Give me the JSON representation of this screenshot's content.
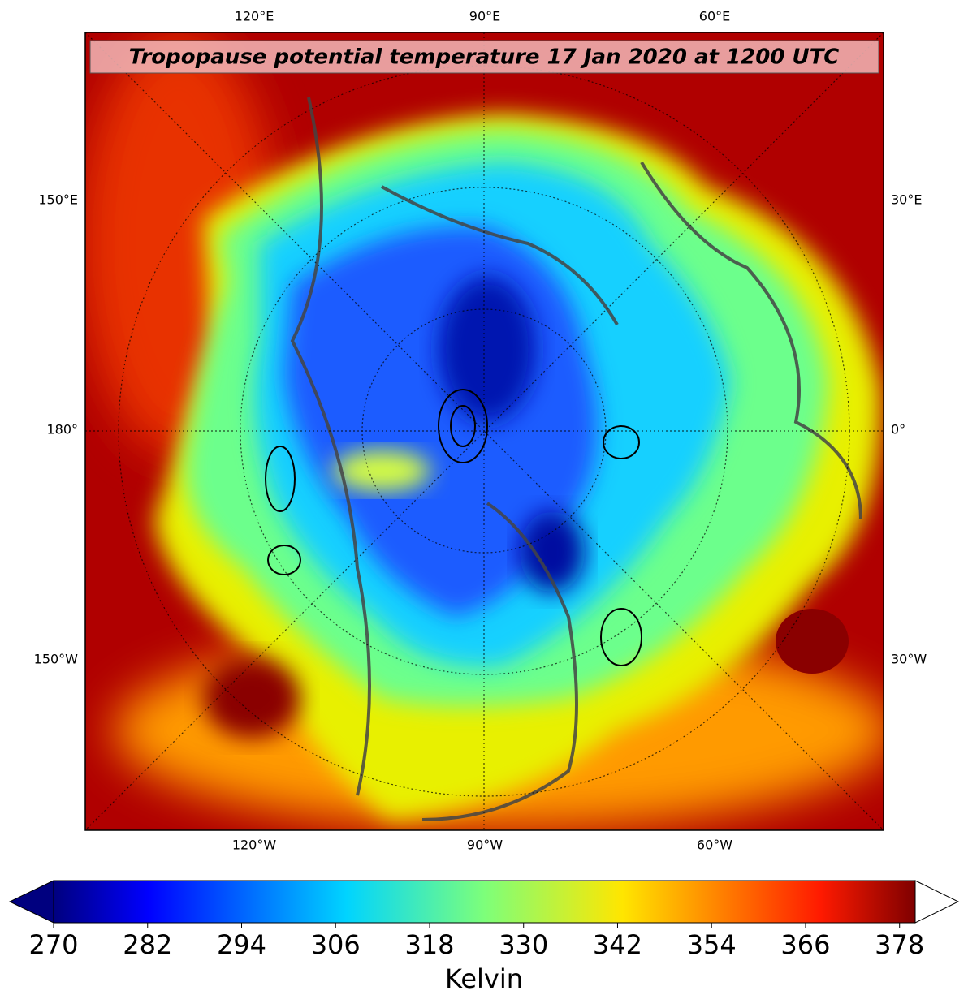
{
  "map": {
    "title": "Tropopause potential temperature 17 Jan 2020 at 1200 UTC",
    "top_labels": [
      "120°E",
      "90°E",
      "60°E"
    ],
    "left_labels": [
      "150°E",
      "180°",
      "150°W"
    ],
    "right_labels": [
      "30°E",
      "0°",
      "30°W"
    ],
    "bottom_labels": [
      "120°W",
      "90°W",
      "60°W"
    ]
  },
  "colorbar": {
    "type": "colorbar",
    "colormap": "jet",
    "extend": "both",
    "lim": [
      270,
      380
    ],
    "ticks": [
      270,
      282,
      294,
      306,
      318,
      330,
      342,
      354,
      366,
      378
    ],
    "label": "Kelvin"
  }
}
